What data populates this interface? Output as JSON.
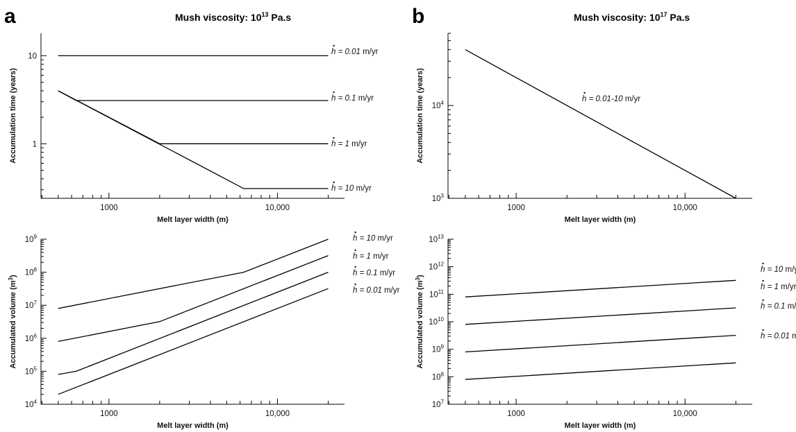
{
  "chart_data": [
    {
      "panel": "a",
      "type": "line",
      "title": "Mush viscosity: 10",
      "title_exp": "13",
      "title_suffix": " Pa.s",
      "xlabel": "Melt layer width (m)",
      "ylabel": "Accumulation time (years)",
      "x_scale": "log",
      "y_scale": "log",
      "xlim": [
        395,
        25000
      ],
      "ylim": [
        0.24,
        18
      ],
      "x_ticks": [
        {
          "v": 1000,
          "label": "1000"
        },
        {
          "v": 10000,
          "label": "10,000"
        }
      ],
      "y_ticks": [
        {
          "v": 1,
          "label": "1"
        },
        {
          "v": 10,
          "label": "10"
        }
      ],
      "series": [
        {
          "name": "0.01",
          "x": [
            500,
            20000
          ],
          "y": [
            10,
            10
          ]
        },
        {
          "name": "0.1",
          "x": [
            500,
            640,
            20000
          ],
          "y": [
            4,
            3.1,
            3.1
          ]
        },
        {
          "name": "1",
          "x": [
            500,
            2000,
            20000
          ],
          "y": [
            4,
            1,
            1
          ]
        },
        {
          "name": "10",
          "x": [
            500,
            6300,
            20000
          ],
          "y": [
            4,
            0.31,
            0.31
          ]
        }
      ]
    },
    {
      "panel": "b",
      "type": "line",
      "title": "Mush viscosity: 10",
      "title_exp": "17",
      "title_suffix": " Pa.s",
      "xlabel": "Melt layer width (m)",
      "ylabel": "Accumulation time (years)",
      "x_scale": "log",
      "y_scale": "log",
      "xlim": [
        395,
        25000
      ],
      "ylim": [
        1000,
        60000
      ],
      "x_ticks": [
        {
          "v": 1000,
          "label": "1000"
        },
        {
          "v": 10000,
          "label": "10,000"
        }
      ],
      "y_ticks": [
        {
          "v": 1000,
          "base": "10",
          "exp": "3"
        },
        {
          "v": 10000,
          "base": "10",
          "exp": "4"
        }
      ],
      "series": [
        {
          "name": "0.01-10",
          "x": [
            500,
            20000
          ],
          "y": [
            40000,
            1000
          ]
        }
      ]
    },
    {
      "panel": "a-volume",
      "type": "line",
      "title": "",
      "xlabel": "Melt layer width (m)",
      "ylabel": "Accumulated volume (m",
      "ylabel_exp": "3",
      "ylabel_suffix": ")",
      "x_scale": "log",
      "y_scale": "log",
      "xlim": [
        395,
        25000
      ],
      "ylim": [
        10000,
        1000000000
      ],
      "x_ticks": [
        {
          "v": 1000,
          "label": "1000"
        },
        {
          "v": 10000,
          "label": "10,000"
        }
      ],
      "y_ticks": [
        {
          "v": 10000,
          "base": "10",
          "exp": "4"
        },
        {
          "v": 100000,
          "base": "10",
          "exp": "5"
        },
        {
          "v": 1000000,
          "base": "10",
          "exp": "6"
        },
        {
          "v": 10000000,
          "base": "10",
          "exp": "7"
        },
        {
          "v": 100000000,
          "base": "10",
          "exp": "8"
        },
        {
          "v": 1000000000,
          "base": "10",
          "exp": "9"
        }
      ],
      "series": [
        {
          "name": "10",
          "x": [
            500,
            6300,
            20000
          ],
          "y": [
            8000000,
            100000000,
            1000000000
          ]
        },
        {
          "name": "1",
          "x": [
            500,
            2000,
            20000
          ],
          "y": [
            800000,
            3200000,
            320000000
          ]
        },
        {
          "name": "0.1",
          "x": [
            500,
            640,
            20000
          ],
          "y": [
            80000,
            100000,
            100000000
          ]
        },
        {
          "name": "0.01",
          "x": [
            500,
            20000
          ],
          "y": [
            20000,
            32000000
          ]
        }
      ]
    },
    {
      "panel": "b-volume",
      "type": "line",
      "title": "",
      "xlabel": "Melt layer width (m)",
      "ylabel": "Accumulated volume (m",
      "ylabel_exp": "3",
      "ylabel_suffix": ")",
      "x_scale": "log",
      "y_scale": "log",
      "xlim": [
        395,
        25000
      ],
      "ylim": [
        10000000,
        10000000000000
      ],
      "x_ticks": [
        {
          "v": 1000,
          "label": "1000"
        },
        {
          "v": 10000,
          "label": "10,000"
        }
      ],
      "y_ticks": [
        {
          "v": 10000000,
          "base": "10",
          "exp": "7"
        },
        {
          "v": 100000000,
          "base": "10",
          "exp": "8"
        },
        {
          "v": 1000000000,
          "base": "10",
          "exp": "9"
        },
        {
          "v": 10000000000,
          "base": "10",
          "exp": "10"
        },
        {
          "v": 100000000000,
          "base": "10",
          "exp": "11"
        },
        {
          "v": 1000000000000,
          "base": "10",
          "exp": "12"
        },
        {
          "v": 10000000000000,
          "base": "10",
          "exp": "13"
        }
      ],
      "series": [
        {
          "name": "10",
          "x": [
            500,
            20000
          ],
          "y": [
            80000000000,
            320000000000
          ]
        },
        {
          "name": "1",
          "x": [
            500,
            20000
          ],
          "y": [
            8000000000,
            32000000000
          ]
        },
        {
          "name": "0.1",
          "x": [
            500,
            20000
          ],
          "y": [
            800000000,
            3200000000
          ]
        },
        {
          "name": "0.01",
          "x": [
            500,
            20000
          ],
          "y": [
            80000000,
            320000000
          ]
        }
      ]
    }
  ],
  "panel_letters": {
    "a": "a",
    "b": "b"
  },
  "rate_symbol": "h",
  "rate_eq": " = ",
  "rate_unit": " m/yr"
}
